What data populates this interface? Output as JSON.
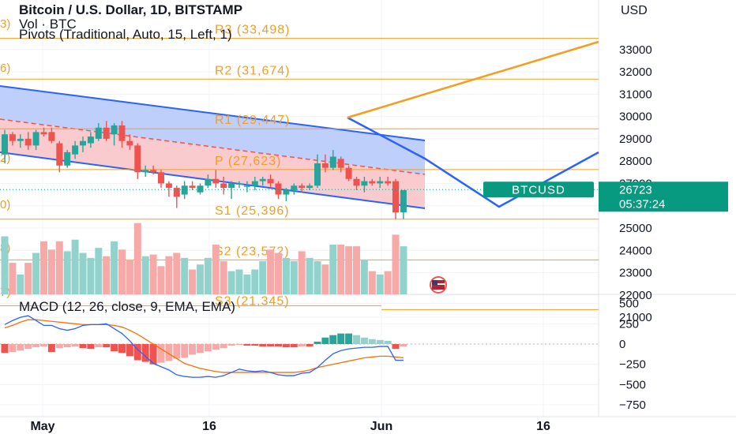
{
  "header": {
    "symbol_title": "Bitcoin / U.S. Dollar, 1D, BITSTAMP",
    "volume_title": "Vol · BTC",
    "pivots_title": "Pivots (Traditional, Auto, 15, Left, 1)",
    "macd_title": "MACD (12, 26, close, 9, EMA, EMA)"
  },
  "colors": {
    "up": "#26a69a",
    "down": "#ef5350",
    "up_vol": "#92d2cc",
    "down_vol": "#f7a9a7",
    "pivot": "#f59d1f",
    "channel": "#2962ff",
    "channel_upper_fill": "#bcccfb",
    "channel_lower_fill": "#f9c7cb",
    "macd_line": "#2962ff",
    "signal_line": "#ff6d00",
    "projection": "#2962ff",
    "arrow": "#f59d1f",
    "badge": "#089981"
  },
  "chart_data": [
    {
      "type": "candlestick",
      "title": "Bitcoin / U.S. Dollar, 1D, BITSTAMP",
      "ylabel": "USD",
      "ylim": [
        21000,
        33500
      ],
      "y_ticks": [
        21000,
        22000,
        23000,
        24000,
        25000,
        26000,
        27000,
        28000,
        29000,
        30000,
        31000,
        32000,
        33000
      ],
      "x_tick_labels": [
        "May",
        "16",
        "Jun",
        "16"
      ],
      "candles": [
        {
          "o": 28300,
          "h": 29400,
          "l": 27900,
          "c": 29200
        },
        {
          "o": 29200,
          "h": 29300,
          "l": 28700,
          "c": 28900
        },
        {
          "o": 28900,
          "h": 29200,
          "l": 28600,
          "c": 29000
        },
        {
          "o": 29000,
          "h": 29300,
          "l": 28500,
          "c": 28700
        },
        {
          "o": 28700,
          "h": 29400,
          "l": 28500,
          "c": 29300
        },
        {
          "o": 29300,
          "h": 29500,
          "l": 29100,
          "c": 29200
        },
        {
          "o": 29300,
          "h": 29500,
          "l": 28800,
          "c": 28900
        },
        {
          "o": 28800,
          "h": 28900,
          "l": 27500,
          "c": 27800
        },
        {
          "o": 27800,
          "h": 28500,
          "l": 27700,
          "c": 28400
        },
        {
          "o": 28300,
          "h": 28900,
          "l": 28100,
          "c": 28700
        },
        {
          "o": 28700,
          "h": 29100,
          "l": 28400,
          "c": 28900
        },
        {
          "o": 28800,
          "h": 29300,
          "l": 28600,
          "c": 29100
        },
        {
          "o": 29000,
          "h": 29700,
          "l": 28900,
          "c": 29500
        },
        {
          "o": 29500,
          "h": 29800,
          "l": 28900,
          "c": 29000
        },
        {
          "o": 29200,
          "h": 29700,
          "l": 28700,
          "c": 29600
        },
        {
          "o": 29600,
          "h": 29800,
          "l": 28600,
          "c": 28900
        },
        {
          "o": 28900,
          "h": 29200,
          "l": 28500,
          "c": 28700
        },
        {
          "o": 28700,
          "h": 28800,
          "l": 27200,
          "c": 27500
        },
        {
          "o": 27500,
          "h": 27800,
          "l": 27300,
          "c": 27600
        },
        {
          "o": 27600,
          "h": 27800,
          "l": 27400,
          "c": 27500
        },
        {
          "o": 27500,
          "h": 27600,
          "l": 26800,
          "c": 27000
        },
        {
          "o": 27000,
          "h": 27100,
          "l": 26400,
          "c": 26800
        },
        {
          "o": 26800,
          "h": 26900,
          "l": 25900,
          "c": 26400
        },
        {
          "o": 26500,
          "h": 27100,
          "l": 26300,
          "c": 26900
        },
        {
          "o": 26900,
          "h": 27100,
          "l": 26700,
          "c": 26800
        },
        {
          "o": 26600,
          "h": 27000,
          "l": 26500,
          "c": 26900
        },
        {
          "o": 26900,
          "h": 27400,
          "l": 26800,
          "c": 27200
        },
        {
          "o": 27200,
          "h": 27600,
          "l": 26800,
          "c": 27000
        },
        {
          "o": 27000,
          "h": 27300,
          "l": 26500,
          "c": 26800
        },
        {
          "o": 26800,
          "h": 27100,
          "l": 26300,
          "c": 27000
        },
        {
          "o": 27000,
          "h": 27100,
          "l": 26800,
          "c": 27000
        },
        {
          "o": 26900,
          "h": 27100,
          "l": 26600,
          "c": 26900
        },
        {
          "o": 26900,
          "h": 27300,
          "l": 26700,
          "c": 27100
        },
        {
          "o": 27100,
          "h": 27300,
          "l": 26900,
          "c": 27200
        },
        {
          "o": 27200,
          "h": 27400,
          "l": 26800,
          "c": 27000
        },
        {
          "o": 27000,
          "h": 27100,
          "l": 26300,
          "c": 26500
        },
        {
          "o": 26500,
          "h": 26800,
          "l": 26200,
          "c": 26700
        },
        {
          "o": 26700,
          "h": 27000,
          "l": 26500,
          "c": 26900
        },
        {
          "o": 26900,
          "h": 27000,
          "l": 26600,
          "c": 26800
        },
        {
          "o": 26800,
          "h": 27000,
          "l": 26700,
          "c": 26900
        },
        {
          "o": 26900,
          "h": 28300,
          "l": 26800,
          "c": 27900
        },
        {
          "o": 27900,
          "h": 28300,
          "l": 27500,
          "c": 27700
        },
        {
          "o": 27700,
          "h": 28500,
          "l": 27600,
          "c": 28200
        },
        {
          "o": 28100,
          "h": 28200,
          "l": 27500,
          "c": 27700
        },
        {
          "o": 27700,
          "h": 27800,
          "l": 27100,
          "c": 27200
        },
        {
          "o": 27200,
          "h": 27300,
          "l": 26700,
          "c": 26900
        },
        {
          "o": 26900,
          "h": 27300,
          "l": 26600,
          "c": 27100
        },
        {
          "o": 27100,
          "h": 27200,
          "l": 26900,
          "c": 27000
        },
        {
          "o": 27000,
          "h": 27300,
          "l": 26800,
          "c": 27100
        },
        {
          "o": 27100,
          "h": 27300,
          "l": 26900,
          "c": 27000
        },
        {
          "o": 27100,
          "h": 27200,
          "l": 25400,
          "c": 25700
        },
        {
          "o": 25700,
          "h": 26700,
          "l": 25400,
          "c": 26700
        }
      ],
      "volumes": [
        3.5,
        1.9,
        1.2,
        1.9,
        2.5,
        3.2,
        2.7,
        3.2,
        2.6,
        3.3,
        2.5,
        2.2,
        2.8,
        2.3,
        3.2,
        2.7,
        2.1,
        4.3,
        2.3,
        2.4,
        1.7,
        2.3,
        2.5,
        2.2,
        1.5,
        1.8,
        2.2,
        3.0,
        2.0,
        1.4,
        1.5,
        1.2,
        1.5,
        2.0,
        2.7,
        2.5,
        2.2,
        2.0,
        2.6,
        2.2,
        2.0,
        1.8,
        3.0,
        3.0,
        2.9,
        2.9,
        2.1,
        1.4,
        1.2,
        1.4,
        3.6,
        2.9
      ],
      "pivots": [
        {
          "label": "R3 (33,498)",
          "value": 33498
        },
        {
          "label": "R2 (31,674)",
          "value": 31674
        },
        {
          "label": "R1 (29,447)",
          "value": 29447
        },
        {
          "label": "P (27,623)",
          "value": 27623
        },
        {
          "label": "S1 (25,396)",
          "value": 25396
        },
        {
          "label": "S2 (23,572)",
          "value": 23572
        },
        {
          "label": "S3 (21,345)",
          "value": 21345
        }
      ],
      "left_partial_labels": [
        "3)",
        "6)",
        "2)",
        "0)",
        "8)",
        "7)"
      ],
      "last_price": {
        "symbol": "BTCUSD",
        "value": "26723",
        "countdown": "05:37:24"
      }
    },
    {
      "type": "line",
      "title": "MACD (12, 26, close, 9, EMA, EMA)",
      "y_ticks": [
        500,
        250,
        0,
        -250,
        -500,
        -750
      ],
      "y_tick_labels": [
        "500",
        "250",
        "0",
        "−250",
        "−500",
        "−750"
      ],
      "ylim": [
        -820,
        560
      ],
      "macd": [
        240,
        290,
        330,
        350,
        290,
        230,
        230,
        190,
        170,
        190,
        230,
        240,
        240,
        250,
        190,
        130,
        40,
        -70,
        -150,
        -240,
        -280,
        -320,
        -380,
        -400,
        -410,
        -410,
        -400,
        -410,
        -390,
        -350,
        -310,
        -330,
        -340,
        -330,
        -350,
        -380,
        -390,
        -390,
        -360,
        -350,
        -290,
        -200,
        -120,
        -80,
        -60,
        -50,
        -40,
        -40,
        -30,
        -30,
        -200,
        -200
      ],
      "signal": [
        200,
        230,
        270,
        300,
        300,
        290,
        280,
        270,
        260,
        250,
        240,
        240,
        240,
        240,
        230,
        210,
        170,
        120,
        60,
        0,
        -60,
        -120,
        -180,
        -240,
        -270,
        -300,
        -320,
        -340,
        -350,
        -350,
        -350,
        -350,
        -350,
        -350,
        -350,
        -350,
        -350,
        -350,
        -340,
        -320,
        -290,
        -270,
        -250,
        -230,
        -210,
        -190,
        -170,
        -160,
        -150,
        -150,
        -160,
        -170
      ],
      "histogram": [
        -110,
        -100,
        -80,
        -60,
        -40,
        -30,
        -100,
        -50,
        -40,
        -30,
        -50,
        -60,
        -40,
        -40,
        -90,
        -110,
        -150,
        -200,
        -220,
        -250,
        -230,
        -210,
        -180,
        -170,
        -130,
        -110,
        -90,
        -70,
        -50,
        -20,
        -10,
        -20,
        -20,
        -30,
        -30,
        -30,
        -40,
        -40,
        -30,
        -30,
        30,
        80,
        110,
        130,
        130,
        110,
        80,
        60,
        50,
        40,
        -60,
        -30
      ]
    }
  ]
}
